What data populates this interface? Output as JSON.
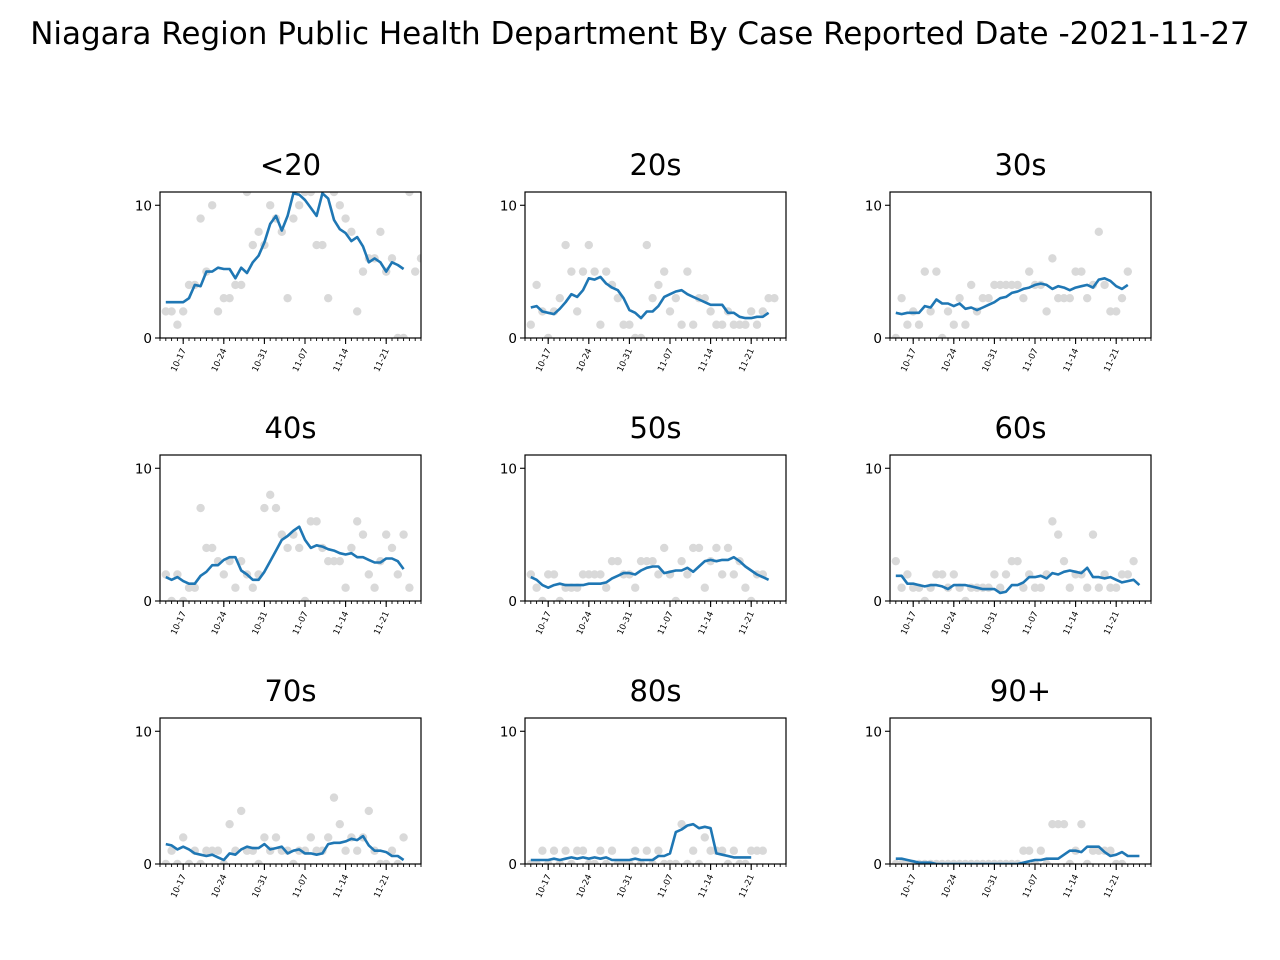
{
  "figure": {
    "title": "Niagara Region Public Health Department By Case Reported Date -2021-11-27"
  },
  "chart_data": {
    "type": "line",
    "layout": "3x3 small multiples",
    "x_axis": {
      "type": "date",
      "range": [
        "2021-10-13",
        "2021-11-27"
      ],
      "ticks": [
        "2021-10-17",
        "2021-10-24",
        "2021-10-31",
        "2021-11-07",
        "2021-11-14",
        "2021-11-21"
      ],
      "tick_labels": [
        "10-17",
        "10-24",
        "10-31",
        "11-07",
        "11-14",
        "11-21"
      ]
    },
    "y_axis": {
      "ylim": [
        0,
        11
      ],
      "ticks": [
        0,
        10
      ]
    },
    "grid": false,
    "points_color": "#d9d9d9",
    "line_color": "#1f77b4",
    "panels": [
      {
        "title": "<20",
        "daily_cases": [
          2,
          2,
          1,
          2,
          4,
          4,
          9,
          5,
          10,
          2,
          3,
          3,
          4,
          4,
          11,
          7,
          8,
          7,
          10,
          9,
          8,
          3,
          9,
          10,
          11,
          11,
          7,
          7,
          3,
          11,
          10,
          9,
          8,
          2,
          5,
          6,
          6,
          8,
          5,
          6,
          0,
          0,
          11,
          5,
          6
        ],
        "rolling_avg": [
          2.7,
          2.7,
          2.7,
          2.7,
          3,
          4,
          3.9,
          5,
          5,
          5.3,
          5.2,
          5.2,
          4.5,
          5.3,
          4.9,
          5.7,
          6.2,
          7.2,
          8.6,
          9.2,
          8.1,
          9.2,
          10.9,
          10.8,
          10.4,
          9.8,
          9.2,
          10.9,
          10.5,
          8.9,
          8.2,
          7.9,
          7.3,
          7.6,
          6.9,
          5.7,
          6,
          5.7,
          5,
          5.7,
          5.5,
          5.2
        ]
      },
      {
        "title": "20s",
        "daily_cases": [
          1,
          4,
          2,
          0,
          2,
          3,
          7,
          5,
          2,
          5,
          7,
          5,
          1,
          5,
          4,
          3,
          1,
          1,
          0,
          0,
          7,
          3,
          4,
          5,
          2,
          3,
          1,
          5,
          1,
          3,
          3,
          2,
          1,
          1,
          2,
          1,
          1,
          1,
          2,
          1,
          2,
          3,
          3
        ],
        "rolling_avg": [
          2.3,
          2.4,
          2,
          1.9,
          1.8,
          2.2,
          2.7,
          3.3,
          3.1,
          3.6,
          4.5,
          4.4,
          4.6,
          4.1,
          3.8,
          3.6,
          3,
          2.1,
          1.9,
          1.5,
          2,
          2,
          2.4,
          3.1,
          3.3,
          3.5,
          3.6,
          3.3,
          3.1,
          2.9,
          2.7,
          2.5,
          2.5,
          2.5,
          1.9,
          1.9,
          1.6,
          1.5,
          1.5,
          1.6,
          1.6,
          1.9
        ]
      },
      {
        "title": "30s",
        "daily_cases": [
          0,
          3,
          1,
          2,
          1,
          5,
          2,
          5,
          0,
          2,
          1,
          3,
          1,
          4,
          2,
          3,
          3,
          4,
          4,
          4,
          4,
          4,
          3,
          5,
          4,
          4,
          2,
          6,
          3,
          3,
          3,
          5,
          5,
          3,
          4,
          8,
          4,
          2,
          2,
          3,
          5
        ],
        "rolling_avg": [
          1.9,
          1.8,
          1.9,
          1.9,
          1.9,
          2.4,
          2.3,
          2.9,
          2.6,
          2.6,
          2.4,
          2.6,
          2.2,
          2.3,
          2.1,
          2.3,
          2.5,
          2.7,
          3,
          3.1,
          3.4,
          3.5,
          3.7,
          3.8,
          4,
          4.1,
          4,
          3.7,
          3.9,
          3.8,
          3.6,
          3.8,
          3.9,
          4,
          3.8,
          4.4,
          4.5,
          4.3,
          3.9,
          3.7,
          4
        ]
      },
      {
        "title": "40s",
        "daily_cases": [
          2,
          0,
          2,
          0,
          1,
          1,
          7,
          4,
          4,
          3,
          2,
          3,
          1,
          3,
          2,
          1,
          2,
          7,
          8,
          7,
          5,
          4,
          5,
          4,
          0,
          6,
          6,
          4,
          3,
          3,
          3,
          1,
          4,
          6,
          5,
          2,
          1,
          3,
          5,
          4,
          2,
          5,
          1
        ],
        "rolling_avg": [
          1.8,
          1.6,
          1.8,
          1.5,
          1.3,
          1.3,
          1.9,
          2.2,
          2.7,
          2.7,
          3.1,
          3.3,
          3.3,
          2.3,
          2,
          1.6,
          1.6,
          2.2,
          3,
          3.8,
          4.6,
          4.9,
          5.3,
          5.6,
          4.6,
          4,
          4.2,
          4.1,
          3.9,
          3.8,
          3.6,
          3.5,
          3.6,
          3.3,
          3.3,
          3.1,
          2.9,
          2.9,
          3.2,
          3.2,
          3,
          2.4
        ]
      },
      {
        "title": "50s",
        "daily_cases": [
          2,
          1,
          0,
          2,
          2,
          0,
          1,
          1,
          1,
          2,
          2,
          2,
          2,
          1,
          3,
          3,
          2,
          2,
          1,
          3,
          3,
          3,
          2,
          4,
          2,
          0,
          3,
          2,
          4,
          4,
          1,
          3,
          4,
          2,
          4,
          2,
          3,
          1,
          0,
          2,
          2
        ],
        "rolling_avg": [
          1.8,
          1.6,
          1.2,
          1,
          1.2,
          1.3,
          1.2,
          1.2,
          1.2,
          1.2,
          1.3,
          1.3,
          1.3,
          1.4,
          1.7,
          1.9,
          2.1,
          2.1,
          2,
          2.3,
          2.5,
          2.6,
          2.6,
          2.1,
          2.2,
          2.3,
          2.3,
          2.5,
          2.2,
          2.6,
          3,
          3.1,
          3,
          3.1,
          3.1,
          3.3,
          3,
          2.6,
          2.3,
          2,
          1.8,
          1.6
        ]
      },
      {
        "title": "60s",
        "daily_cases": [
          3,
          1,
          2,
          1,
          1,
          0,
          1,
          2,
          2,
          1,
          2,
          1,
          0,
          1,
          1,
          1,
          1,
          2,
          1,
          2,
          3,
          3,
          1,
          2,
          1,
          1,
          2,
          6,
          5,
          3,
          1,
          2,
          2,
          1,
          5,
          1,
          2,
          1,
          1,
          2,
          2,
          3
        ],
        "rolling_avg": [
          1.9,
          1.9,
          1.3,
          1.3,
          1.2,
          1.1,
          1.2,
          1.2,
          1.1,
          0.9,
          1.2,
          1.2,
          1.2,
          1.1,
          1,
          0.9,
          0.9,
          0.9,
          0.6,
          0.7,
          1.2,
          1.2,
          1.4,
          1.8,
          1.8,
          1.9,
          1.7,
          2.1,
          2,
          2.2,
          2.3,
          2.2,
          2.1,
          2.5,
          1.8,
          1.8,
          1.7,
          1.8,
          1.6,
          1.4,
          1.5,
          1.6,
          1.2
        ]
      },
      {
        "title": "70s",
        "daily_cases": [
          0,
          1,
          0,
          2,
          0,
          1,
          0,
          1,
          1,
          1,
          0,
          3,
          1,
          4,
          1,
          1,
          0,
          2,
          1,
          2,
          1,
          1,
          0,
          1,
          1,
          2,
          1,
          1,
          2,
          5,
          3,
          1,
          2,
          1,
          2,
          4,
          1,
          0,
          0,
          1,
          0,
          2
        ],
        "rolling_avg": [
          1.5,
          1.4,
          1.1,
          1.3,
          1.1,
          0.8,
          0.7,
          0.6,
          0.7,
          0.5,
          0.3,
          0.8,
          0.7,
          1.1,
          1.3,
          1.2,
          1.2,
          1.5,
          1.1,
          1.2,
          1.3,
          0.8,
          1,
          1.1,
          0.8,
          0.8,
          0.7,
          0.8,
          1.5,
          1.6,
          1.6,
          1.7,
          1.9,
          1.8,
          2.1,
          1.4,
          1,
          1,
          0.9,
          0.6,
          0.6,
          0.3
        ]
      },
      {
        "title": "80s",
        "daily_cases": [
          0,
          0,
          1,
          0,
          1,
          0,
          1,
          0,
          1,
          1,
          0,
          0,
          1,
          0,
          1,
          0,
          0,
          0,
          1,
          0,
          1,
          0,
          1,
          0,
          0,
          0,
          3,
          0,
          1,
          0,
          2,
          1,
          1,
          1,
          0,
          1,
          0,
          0,
          1,
          1,
          1
        ],
        "rolling_avg": [
          0.3,
          0.3,
          0.3,
          0.3,
          0.4,
          0.3,
          0.4,
          0.5,
          0.4,
          0.5,
          0.4,
          0.5,
          0.4,
          0.5,
          0.3,
          0.3,
          0.3,
          0.3,
          0.4,
          0.3,
          0.3,
          0.3,
          0.6,
          0.6,
          0.8,
          2.4,
          2.6,
          2.9,
          3,
          2.7,
          2.8,
          2.7,
          0.8,
          0.7,
          0.6,
          0.5,
          0.5,
          0.5,
          0.5
        ]
      },
      {
        "title": "90+",
        "daily_cases": [
          0,
          0,
          0,
          0,
          0,
          0,
          0,
          0,
          0,
          0,
          0,
          0,
          0,
          0,
          0,
          0,
          0,
          0,
          0,
          0,
          0,
          0,
          1,
          1,
          0,
          1,
          0,
          3,
          3,
          3,
          0,
          1,
          3,
          0,
          1,
          1,
          1,
          1,
          0,
          0
        ],
        "rolling_avg": [
          0.4,
          0.4,
          0.3,
          0.2,
          0.1,
          0.1,
          0.1,
          0,
          0,
          0,
          0,
          0,
          0,
          0,
          0,
          0,
          0,
          0,
          0,
          0,
          0,
          0,
          0.1,
          0.2,
          0.3,
          0.3,
          0.4,
          0.4,
          0.4,
          0.7,
          1,
          1,
          0.9,
          1.3,
          1.3,
          1.3,
          0.9,
          0.6,
          0.7,
          0.9,
          0.6,
          0.6,
          0.6
        ]
      }
    ]
  }
}
